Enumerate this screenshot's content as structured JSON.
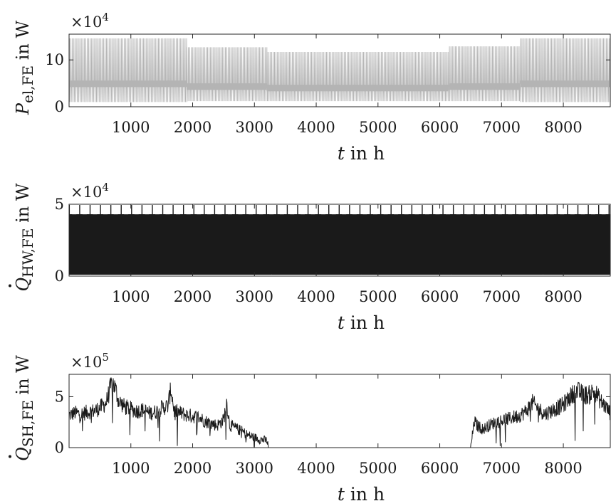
{
  "chart_data": [
    {
      "type": "line",
      "title": "",
      "ylabel_main": "P",
      "ylabel_sub": "el,FE",
      "ylabel_unit": " in W",
      "xlabel_var": "t",
      "xlabel_rest": " in h",
      "exponent_base": "×10",
      "exponent_power": "4",
      "xlim": [
        0,
        8760
      ],
      "ylim": [
        0,
        15.5
      ],
      "xticks": [
        "1000",
        "2000",
        "3000",
        "4000",
        "5000",
        "6000",
        "7000",
        "8000"
      ],
      "yticks": [
        "0",
        "10"
      ],
      "color": "#b4b4b4",
      "series": [
        {
          "segments": [
            {
              "x_start": 0,
              "x_end": 1900,
              "base": 4.9,
              "peak": 14.6,
              "low": 1.0
            },
            {
              "x_start": 1900,
              "x_end": 3200,
              "base": 4.3,
              "peak": 12.7,
              "low": 1.2
            },
            {
              "x_start": 3200,
              "x_end": 6150,
              "base": 4.0,
              "peak": 11.7,
              "low": 1.2
            },
            {
              "x_start": 6150,
              "x_end": 7300,
              "base": 4.3,
              "peak": 12.9,
              "low": 1.2
            },
            {
              "x_start": 7300,
              "x_end": 8760,
              "base": 4.9,
              "peak": 14.6,
              "low": 1.0
            }
          ]
        }
      ]
    },
    {
      "type": "line",
      "title": "",
      "ylabel_main": "Q",
      "ylabel_sub": "HW,FE",
      "ylabel_unit": " in W",
      "xlabel_var": "t",
      "xlabel_rest": " in h",
      "exponent_base": "×10",
      "exponent_power": "4",
      "xlim": [
        0,
        8760
      ],
      "ylim": [
        0,
        5.0
      ],
      "xticks": [
        "1000",
        "2000",
        "3000",
        "4000",
        "5000",
        "6000",
        "7000",
        "8000"
      ],
      "yticks": [
        "0",
        "5"
      ],
      "color": "#1a1a1a",
      "series": [
        {
          "weekly_pattern": {
            "period_h": 168,
            "peak": 4.95,
            "band_top": 4.3,
            "band_bottom": 1.8,
            "low": 0.1
          }
        }
      ]
    },
    {
      "type": "line",
      "title": "",
      "ylabel_main": "Q",
      "ylabel_sub": "SH,FE",
      "ylabel_unit": " in W",
      "xlabel_var": "t",
      "xlabel_rest": " in h",
      "exponent_base": "×10",
      "exponent_power": "5",
      "xlim": [
        0,
        8760
      ],
      "ylim": [
        0,
        7.2
      ],
      "xticks": [
        "1000",
        "2000",
        "3000",
        "4000",
        "5000",
        "6000",
        "7000",
        "8000"
      ],
      "yticks": [
        "0",
        "5"
      ],
      "color": "#1a1a1a",
      "series": [
        {
          "x": [
            0,
            100,
            200,
            300,
            400,
            500,
            600,
            700,
            750,
            800,
            900,
            1000,
            1100,
            1200,
            1300,
            1400,
            1500,
            1600,
            1650,
            1700,
            1800,
            1900,
            2000,
            2100,
            2200,
            2300,
            2400,
            2500,
            2550,
            2600,
            2700,
            2800,
            2900,
            3000,
            3100,
            3200,
            3230,
            3300,
            4000,
            5000,
            6000,
            6500,
            6560,
            6600,
            6700,
            6800,
            6900,
            7000,
            7100,
            7200,
            7300,
            7400,
            7500,
            7600,
            7700,
            7800,
            7900,
            8000,
            8100,
            8200,
            8300,
            8400,
            8500,
            8600,
            8700,
            8760
          ],
          "y": [
            3.2,
            3.4,
            3.3,
            3.5,
            3.6,
            3.9,
            4.4,
            6.5,
            5.8,
            4.6,
            4.0,
            3.8,
            3.6,
            3.7,
            3.4,
            3.5,
            3.9,
            4.1,
            5.8,
            3.6,
            3.4,
            3.2,
            3.1,
            3.0,
            2.6,
            2.4,
            2.2,
            2.7,
            4.5,
            2.2,
            1.9,
            1.6,
            1.2,
            1.0,
            0.8,
            0.7,
            0.0,
            0.0,
            0.0,
            0.0,
            0.0,
            0.0,
            2.6,
            2.2,
            1.8,
            2.2,
            2.5,
            2.7,
            2.8,
            3.0,
            3.2,
            3.6,
            4.4,
            3.8,
            3.3,
            3.6,
            3.9,
            4.2,
            4.9,
            5.6,
            5.3,
            5.1,
            5.6,
            4.6,
            3.9,
            3.4
          ]
        }
      ]
    }
  ]
}
